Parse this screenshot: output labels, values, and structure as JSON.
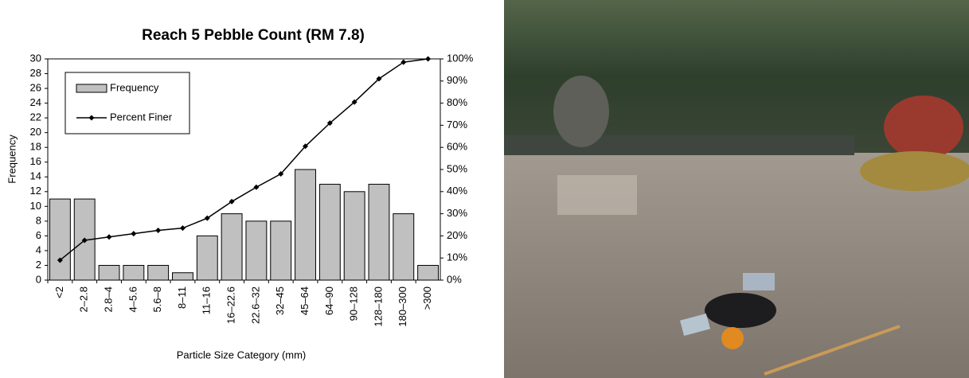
{
  "chart_data": {
    "type": "bar",
    "title": "Reach 5 Pebble Count (RM 7.8)",
    "x_label": "Particle Size Category (mm)",
    "y_label": "Frequency",
    "categories": [
      "<2",
      "2–2.8",
      "2.8–4",
      "4–5.6",
      "5.6–8",
      "8–11",
      "11–16",
      "16–22.6",
      "22.6–32",
      "32–45",
      "45–64",
      "64–90",
      "90–128",
      "128–180",
      "180–300",
      ">300"
    ],
    "series": [
      {
        "name": "Frequency",
        "type": "bar",
        "color": "#c0c0c0",
        "values": [
          11,
          11,
          2,
          2,
          2,
          1,
          6,
          9,
          8,
          8,
          15,
          13,
          12,
          13,
          9,
          2
        ]
      },
      {
        "name": "Percent Finer",
        "type": "line",
        "axis": "y2",
        "color": "#000000",
        "values": [
          9,
          18,
          19.5,
          21,
          22.5,
          23.5,
          28,
          35.5,
          42,
          48,
          60.5,
          71,
          80.5,
          91,
          98.5,
          100
        ]
      }
    ],
    "ylim": [
      0,
      30
    ],
    "yticks": [
      0,
      2,
      4,
      6,
      8,
      10,
      12,
      14,
      16,
      18,
      20,
      22,
      24,
      26,
      28,
      30
    ],
    "y2lim": [
      0,
      100
    ],
    "y2ticks": [
      {
        "value": 0,
        "label": "0%"
      },
      {
        "value": 10,
        "label": "10%"
      },
      {
        "value": 20,
        "label": "20%"
      },
      {
        "value": 30,
        "label": "30%"
      },
      {
        "value": 40,
        "label": "40%"
      },
      {
        "value": 50,
        "label": "50%"
      },
      {
        "value": 60,
        "label": "60%"
      },
      {
        "value": 70,
        "label": "70%"
      },
      {
        "value": 80,
        "label": "80%"
      },
      {
        "value": 90,
        "label": "90%"
      },
      {
        "value": 100,
        "label": "100%"
      }
    ],
    "grid": false,
    "legend": "upper-left"
  }
}
